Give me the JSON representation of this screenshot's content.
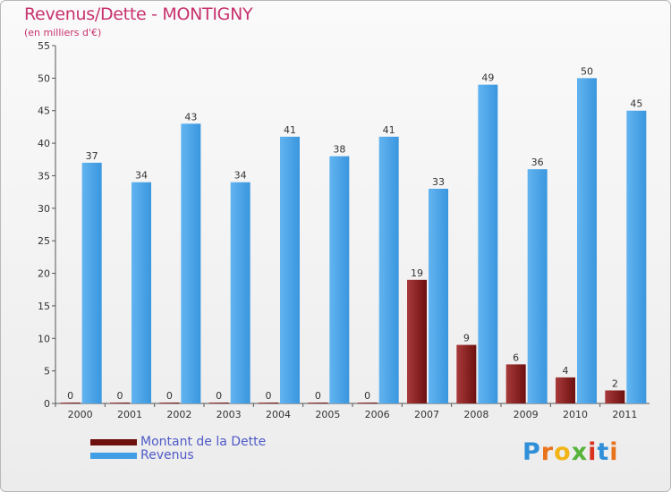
{
  "header": {
    "title": "Revenus/Dette - MONTIGNY",
    "subtitle": "(en milliers d'€)"
  },
  "legend": {
    "dette_label": "Montant de la Dette",
    "revenus_label": "Revenus"
  },
  "logo": {
    "text": "Proxiti",
    "letters": [
      "P",
      "r",
      "o",
      "x",
      "i",
      "t",
      "i"
    ],
    "colors": [
      "#2f8fd8",
      "#e8731c",
      "#f2b417",
      "#57b33a",
      "#d8331f",
      "#2f8fd8",
      "#e8731c"
    ]
  },
  "colors": {
    "dette": "#7a1515",
    "dette_light": "#a83a3a",
    "revenus": "#3f9ee6",
    "revenus_light": "#62b4f0",
    "title": "#c8326e",
    "legend_text": "#4f5ac8"
  },
  "chart_data": {
    "type": "bar",
    "title": "Revenus/Dette - MONTIGNY",
    "ylabel": "(en milliers d'€)",
    "xlabel": "",
    "ylim": [
      0,
      55
    ],
    "yticks": [
      0,
      5,
      10,
      15,
      20,
      25,
      30,
      35,
      40,
      45,
      50,
      55
    ],
    "grid": false,
    "legend_position": "bottom-left",
    "categories": [
      "2000",
      "2001",
      "2002",
      "2003",
      "2004",
      "2005",
      "2006",
      "2007",
      "2008",
      "2009",
      "2010",
      "2011"
    ],
    "series": [
      {
        "name": "Montant de la Dette",
        "values": [
          0,
          0,
          0,
          0,
          0,
          0,
          0,
          19,
          9,
          6,
          4,
          2
        ]
      },
      {
        "name": "Revenus",
        "values": [
          37,
          34,
          43,
          34,
          41,
          38,
          41,
          33,
          49,
          36,
          50,
          45
        ]
      }
    ]
  }
}
